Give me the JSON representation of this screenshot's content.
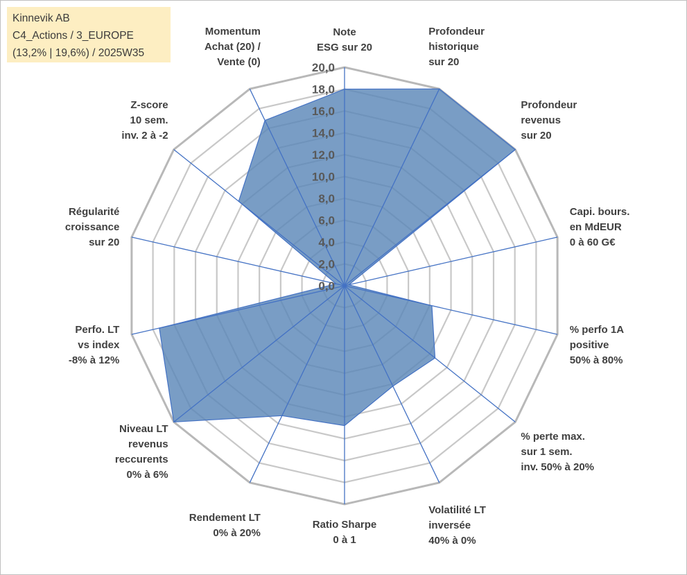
{
  "info": {
    "line1": "Kinnevik AB",
    "line2": "C4_Actions / 3_EUROPE",
    "line3": "(13,2% | 19,6%) / 2025W35"
  },
  "colors": {
    "fill": "#5b87b8",
    "stroke": "#4472c4",
    "grid": "#c8c8c8",
    "outer_ring": "#b8b8b8",
    "info_bg": "#fdeec2"
  },
  "chart_data": {
    "type": "radar",
    "rmin": 0,
    "rmax": 20,
    "tick_step": 2,
    "tick_labels": [
      "0,0",
      "2,0",
      "4,0",
      "6,0",
      "8,0",
      "10,0",
      "12,0",
      "14,0",
      "16,0",
      "18,0",
      "20,0"
    ],
    "axes": [
      {
        "label": [
          "Note",
          "ESG sur 20"
        ],
        "value": 18.0
      },
      {
        "label": [
          "Profondeur",
          "historique",
          "sur 20"
        ],
        "value": 20.0
      },
      {
        "label": [
          "Profondeur",
          "revenus",
          "sur 20"
        ],
        "value": 20.0
      },
      {
        "label": [
          "Capi. bours.",
          "en MdEUR",
          "0 à 60 G€"
        ],
        "value": 0.4
      },
      {
        "label": [
          "% perfo 1A",
          "positive",
          "50% à 80%"
        ],
        "value": 8.2
      },
      {
        "label": [
          "% perte max.",
          "sur 1 sem.",
          "inv. 50% à 20%"
        ],
        "value": 10.6
      },
      {
        "label": [
          "Volatilité LT",
          "inversée",
          "40% à 0%"
        ],
        "value": 10.2
      },
      {
        "label": [
          "Ratio Sharpe",
          "0 à 1"
        ],
        "value": 12.8
      },
      {
        "label": [
          "Rendement LT",
          "0% à 20%"
        ],
        "value": 13.2
      },
      {
        "label": [
          "Niveau LT",
          "revenus",
          "reccurents",
          "0% à 6%"
        ],
        "value": 20.0
      },
      {
        "label": [
          "Perfo. LT",
          "vs index",
          "-8% à 12%"
        ],
        "value": 17.4
      },
      {
        "label": [
          "Régularité",
          "croissance",
          "sur 20"
        ],
        "value": 0.8
      },
      {
        "label": [
          "Z-score",
          "10 sem.",
          "inv. 2 à -2"
        ],
        "value": 12.4
      },
      {
        "label": [
          "Momentum",
          "Achat (20) /",
          "Vente (0)"
        ],
        "value": 16.8
      }
    ]
  }
}
